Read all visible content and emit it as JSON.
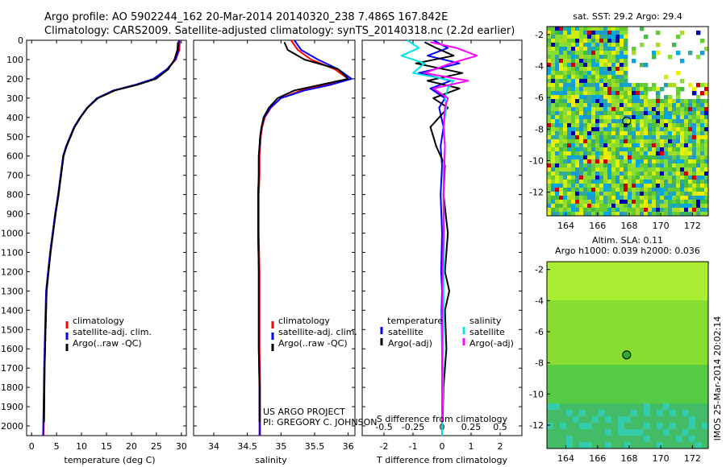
{
  "header": {
    "line1": "Argo profile: AO 5902244_162 20-Mar-2014 20140320_238 7.486S 167.842E",
    "line2": "Climatology: CARS2009. Satellite-adjusted climatology: synTS_20140318.nc (2.2d earlier)"
  },
  "credit": {
    "line1": "US ARGO PROJECT",
    "line2": "PI: GREGORY C. JOHNSON"
  },
  "stamp": "IMOS 25-Mar-2014 20:02:14",
  "colors": {
    "red": "#ff0000",
    "blue": "#0000ff",
    "black": "#000000",
    "cyan": "#00e5e5",
    "magenta": "#ff00ff"
  },
  "chart_data": [
    {
      "type": "line",
      "xlabel": "temperature (deg C)",
      "xlim": [
        -1,
        31
      ],
      "ylim": [
        2050,
        0
      ],
      "xticks": [
        0,
        5,
        10,
        15,
        20,
        25,
        30
      ],
      "yticks": [
        0,
        100,
        200,
        300,
        400,
        500,
        600,
        700,
        800,
        900,
        1000,
        1100,
        1200,
        1300,
        1400,
        1500,
        1600,
        1700,
        1800,
        1900,
        2000
      ],
      "legend": [
        "climatology",
        "satellite-adj. clim.",
        "Argo(..raw -QC)"
      ],
      "series": [
        {
          "name": "climatology",
          "color": "red",
          "x": [
            29.7,
            29.6,
            28.9,
            27.2,
            24.5,
            21.0,
            16.5,
            13.2,
            11.2,
            9.8,
            8.6,
            7.8,
            7.0,
            6.4,
            5.9,
            5.4,
            4.8,
            4.3,
            3.8,
            3.4,
            3.0,
            2.8,
            2.6,
            2.5,
            2.4
          ],
          "y": [
            0,
            50,
            100,
            150,
            200,
            230,
            260,
            300,
            350,
            400,
            450,
            500,
            550,
            600,
            700,
            800,
            900,
            1000,
            1100,
            1200,
            1300,
            1500,
            1700,
            1900,
            2050
          ]
        },
        {
          "name": "satellite-adj. clim.",
          "color": "blue",
          "x": [
            29.5,
            29.4,
            28.8,
            27.1,
            24.4,
            20.9,
            16.4,
            13.1,
            11.1,
            9.7,
            8.5,
            7.7,
            6.9,
            6.3,
            5.8,
            5.3,
            4.7,
            4.2,
            3.7,
            3.3,
            2.9,
            2.7,
            2.5,
            2.4,
            2.3
          ],
          "y": [
            0,
            50,
            100,
            150,
            200,
            230,
            260,
            300,
            350,
            400,
            450,
            500,
            550,
            600,
            700,
            800,
            900,
            1000,
            1100,
            1200,
            1300,
            1500,
            1700,
            1900,
            2050
          ]
        },
        {
          "name": "Argo(..raw -QC)",
          "color": "black",
          "x": [
            29.3,
            29.2,
            28.6,
            27.4,
            24.9,
            21.3,
            16.7,
            13.3,
            11.2,
            9.8,
            8.6,
            7.8,
            7.0,
            6.4,
            5.9,
            5.4,
            4.8,
            4.3,
            3.8,
            3.4,
            3.0,
            2.8,
            2.6,
            2.5
          ],
          "y": [
            10,
            50,
            100,
            150,
            200,
            230,
            260,
            300,
            350,
            400,
            450,
            500,
            550,
            600,
            700,
            800,
            900,
            1000,
            1100,
            1200,
            1300,
            1500,
            1700,
            1980
          ]
        }
      ]
    },
    {
      "type": "line",
      "xlabel": "salinity",
      "xlim": [
        33.7,
        36.1
      ],
      "ylim": [
        2050,
        0
      ],
      "xticks": [
        34,
        34.5,
        35,
        35.5,
        36
      ],
      "legend": [
        "climatology",
        "satellite-adj. clim.",
        "Argo(..raw -QC)"
      ],
      "series": [
        {
          "name": "climatology",
          "color": "red",
          "x": [
            35.15,
            35.25,
            35.45,
            35.8,
            36.0,
            35.7,
            35.3,
            35.0,
            34.85,
            34.76,
            34.72,
            34.7,
            34.69,
            34.68,
            34.68,
            34.67,
            34.67,
            34.67,
            34.68,
            34.68,
            34.68,
            34.69,
            34.69,
            34.69
          ],
          "y": [
            0,
            50,
            100,
            150,
            200,
            230,
            260,
            300,
            350,
            400,
            450,
            500,
            550,
            600,
            700,
            800,
            900,
            1000,
            1200,
            1400,
            1600,
            1800,
            1950,
            2050
          ]
        },
        {
          "name": "satellite-adj. clim.",
          "color": "blue",
          "x": [
            35.2,
            35.3,
            35.55,
            35.85,
            36.05,
            35.75,
            35.35,
            35.0,
            34.84,
            34.75,
            34.71,
            34.69,
            34.68,
            34.67,
            34.67,
            34.66,
            34.66,
            34.66,
            34.67,
            34.67,
            34.67,
            34.68,
            34.68,
            34.68
          ],
          "y": [
            0,
            50,
            100,
            150,
            200,
            230,
            260,
            300,
            350,
            400,
            450,
            500,
            550,
            600,
            700,
            800,
            900,
            1000,
            1200,
            1400,
            1600,
            1800,
            1950,
            2050
          ]
        },
        {
          "name": "Argo(..raw -QC)",
          "color": "black",
          "x": [
            35.05,
            35.1,
            35.35,
            35.85,
            36.0,
            35.6,
            35.2,
            34.95,
            34.82,
            34.74,
            34.71,
            34.69,
            34.68,
            34.67,
            34.67,
            34.66,
            34.66,
            34.66,
            34.67,
            34.67,
            34.67,
            34.68,
            34.68
          ],
          "y": [
            10,
            50,
            100,
            150,
            200,
            230,
            260,
            300,
            350,
            400,
            450,
            500,
            550,
            600,
            700,
            800,
            900,
            1000,
            1200,
            1400,
            1600,
            1800,
            1980
          ]
        }
      ]
    },
    {
      "type": "line",
      "xlabel": "T difference from climatology",
      "xlabel2": "S difference from climatology",
      "xlim": [
        -2.75,
        2.75
      ],
      "ylim": [
        2050,
        0
      ],
      "xticks": [
        -2,
        -1,
        0,
        1,
        2
      ],
      "xticklabels2": [
        "-0.5",
        "-0.25",
        "0",
        "0.25",
        "0.5"
      ],
      "legend_t_title": "temperature",
      "legend_s_title": "salinity",
      "legend": [
        "satellite",
        "Argo(-adj)",
        "satellite",
        "Argo(-adj)"
      ],
      "series": [
        {
          "name": "satellite",
          "group": "temperature",
          "color": "blue",
          "x": [
            -0.3,
            0.2,
            -0.5,
            0.6,
            -0.8,
            0.3,
            -0.4,
            0.1,
            -0.1,
            0.05,
            -0.05,
            0.0,
            -0.05,
            0.0,
            -0.03,
            0.0,
            -0.02,
            0.0,
            0.0,
            0.0
          ],
          "y": [
            0,
            40,
            80,
            120,
            170,
            210,
            250,
            300,
            350,
            450,
            550,
            650,
            800,
            1000,
            1200,
            1300,
            1400,
            1600,
            1800,
            2050
          ]
        },
        {
          "name": "Argo(-adj)",
          "group": "temperature",
          "color": "black",
          "x": [
            -0.6,
            -0.2,
            0.4,
            -0.9,
            0.7,
            -0.5,
            0.6,
            -0.3,
            0.2,
            -0.4,
            -0.2,
            0.1,
            0.05,
            0.2,
            0.1,
            0.25,
            0.1,
            0.15,
            0.05,
            0.02
          ],
          "y": [
            10,
            40,
            80,
            120,
            170,
            210,
            250,
            300,
            350,
            450,
            550,
            650,
            800,
            1000,
            1200,
            1300,
            1400,
            1600,
            1800,
            1980
          ]
        },
        {
          "name": "satellite",
          "group": "salinity",
          "color": "cyan",
          "x": [
            -1.2,
            -0.8,
            -1.4,
            -0.6,
            -1.0,
            0.4,
            0.2,
            0.1,
            0.15,
            0.05,
            0.1,
            0.05,
            0.05,
            0.08,
            0.05,
            0.05,
            0.03,
            0.0
          ],
          "y": [
            0,
            40,
            80,
            120,
            170,
            210,
            250,
            300,
            350,
            450,
            550,
            650,
            800,
            1000,
            1200,
            1500,
            1800,
            2050
          ]
        },
        {
          "name": "Argo(-adj)",
          "group": "salinity",
          "color": "magenta",
          "x": [
            -0.4,
            0.5,
            1.2,
            0.3,
            -0.6,
            0.9,
            -0.3,
            0.2,
            0.1,
            0.05,
            0.1,
            0.08,
            0.05,
            0.05,
            0.02,
            0.0,
            0.0,
            0.0
          ],
          "y": [
            10,
            40,
            80,
            120,
            170,
            210,
            250,
            300,
            350,
            450,
            550,
            650,
            800,
            1000,
            1200,
            1500,
            1800,
            1980
          ]
        }
      ]
    },
    {
      "type": "heatmap",
      "title": "sat. SST: 29.2  Argo: 29.4",
      "xlim": [
        162.8,
        173.0
      ],
      "ylim": [
        -13.5,
        -1.5
      ],
      "xticks": [
        164,
        166,
        168,
        170,
        172
      ],
      "yticks": [
        -2,
        -4,
        -6,
        -8,
        -10,
        -12
      ],
      "marker": {
        "lon": 167.842,
        "lat": -7.486
      }
    },
    {
      "type": "heatmap",
      "title_line1": "Altim. SLA: 0.11",
      "title_line2": "Argo h1000: 0.039 h2000: 0.036",
      "xlim": [
        162.8,
        173.0
      ],
      "ylim": [
        -13.5,
        -1.5
      ],
      "xticks": [
        164,
        166,
        168,
        170,
        172
      ],
      "yticks": [
        -2,
        -4,
        -6,
        -8,
        -10,
        -12
      ],
      "marker": {
        "lon": 167.842,
        "lat": -7.486
      }
    }
  ]
}
